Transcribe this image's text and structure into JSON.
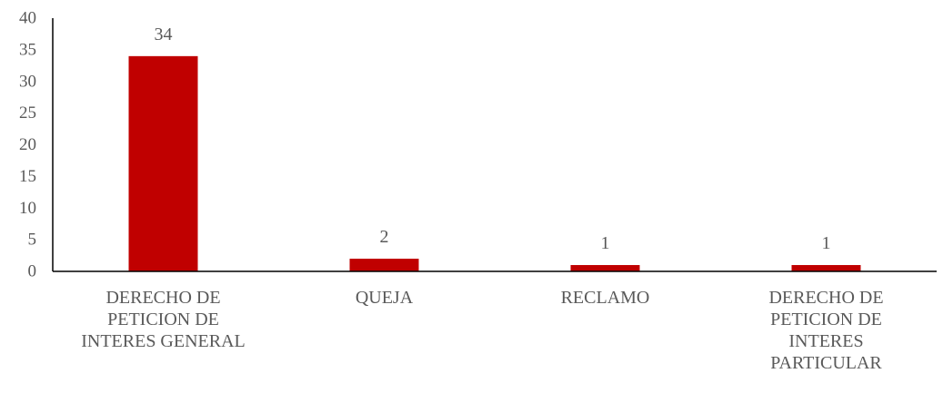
{
  "chart_data": {
    "type": "bar",
    "categories": [
      [
        "DERECHO DE",
        "PETICION DE",
        "INTERES GENERAL"
      ],
      [
        "QUEJA"
      ],
      [
        "RECLAMO"
      ],
      [
        "DERECHO DE",
        "PETICION DE",
        "INTERES",
        "PARTICULAR"
      ]
    ],
    "values": [
      34,
      2,
      1,
      1
    ],
    "data_labels": [
      "34",
      "2",
      "1",
      "1"
    ],
    "ylim": [
      0,
      40
    ],
    "yticks": [
      0,
      5,
      10,
      15,
      20,
      25,
      30,
      35,
      40
    ],
    "bar_color": "#C00000",
    "axis_color": "#000000",
    "text_color": "#595959",
    "grid": false,
    "legend": "none"
  }
}
